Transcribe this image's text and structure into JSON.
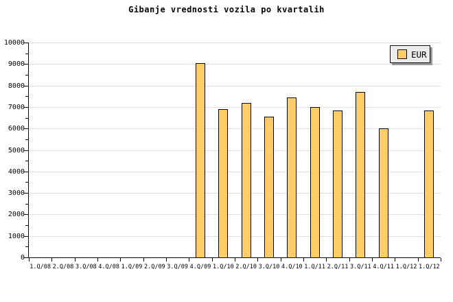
{
  "title": "Gibanje vrednosti vozila po kvartalih",
  "legend": {
    "label": "EUR",
    "swatch_color": "#ffcc66"
  },
  "colors": {
    "bar_fill": "#ffcc66",
    "bar_border": "#000000",
    "gridline": "#dddddd",
    "axis": "#000000",
    "background": "#ffffff",
    "legend_bg": "#ebebeb",
    "legend_shadow": "#999999"
  },
  "chart_data": {
    "type": "bar",
    "title": "Gibanje vrednosti vozila po kvartalih",
    "xlabel": "",
    "ylabel": "",
    "categories": [
      "1.Q/08",
      "2.Q/08",
      "3.Q/08",
      "4.Q/08",
      "1.Q/09",
      "2.Q/09",
      "3.Q/09",
      "4.Q/09",
      "1.Q/10",
      "2.Q/10",
      "3.Q/10",
      "4.Q/10",
      "1.Q/11",
      "2.Q/11",
      "3.Q/11",
      "4.Q/11",
      "1.Q/12",
      "1.Q/12"
    ],
    "series": [
      {
        "name": "EUR",
        "values": [
          null,
          null,
          null,
          null,
          null,
          null,
          null,
          9050,
          6900,
          7200,
          6550,
          7450,
          7000,
          6850,
          7700,
          6000,
          null,
          6850
        ]
      }
    ],
    "ylim": [
      0,
      10000
    ],
    "ytick_major_step": 1000,
    "ytick_minor_step": 500,
    "ytick_labels": [
      "0",
      "1000",
      "2000",
      "3000",
      "4000",
      "5000",
      "6000",
      "7000",
      "8000",
      "9000",
      "10000"
    ],
    "grid": "horizontal-major",
    "legend_position": "top-right"
  }
}
